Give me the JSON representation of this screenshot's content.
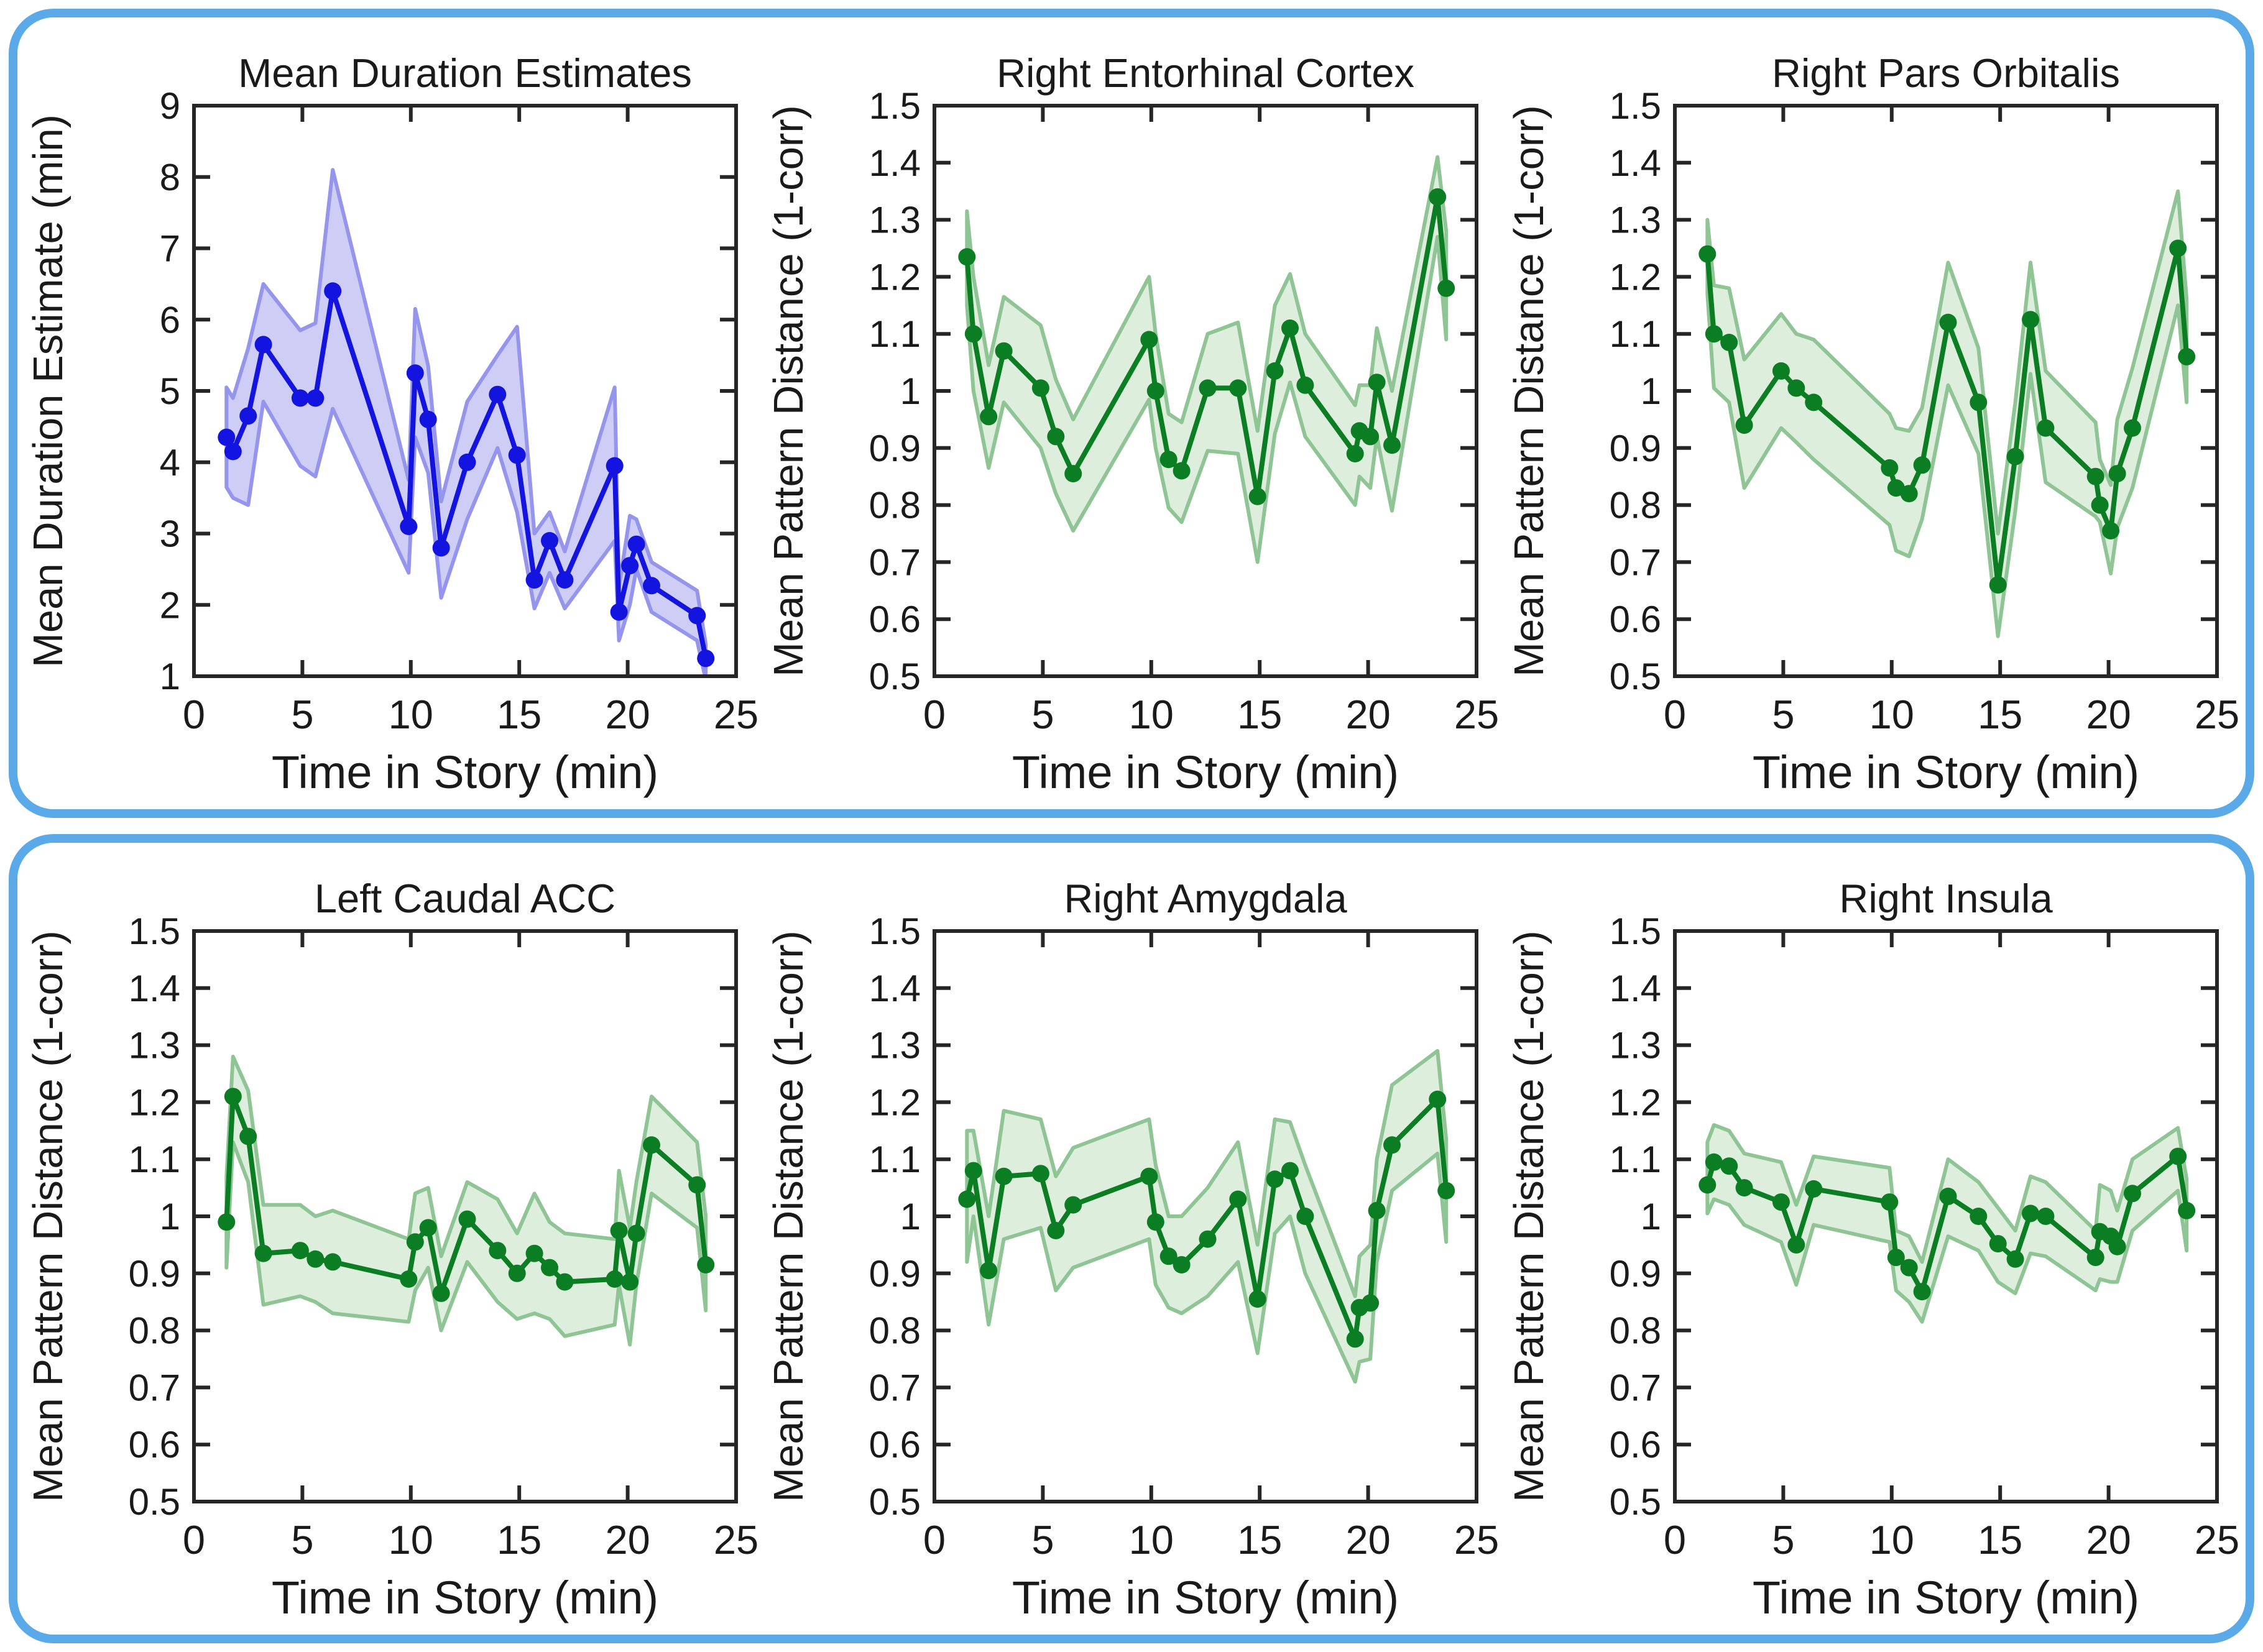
{
  "styles": {
    "panel_border_color": "#5aa9e8",
    "background": "#ffffff",
    "spine_color": "#262626",
    "text_color": "#1a1a1a",
    "blue_line": "#1414e0",
    "blue_band_fill": "#cdcdf6",
    "blue_band_edge": "#9595ee",
    "green_line": "#0b7d22",
    "green_band_fill": "#ddeedd",
    "green_band_edge": "#8fc494"
  },
  "chart_data": {
    "type": "line",
    "layout": "2 rows x 3 cols, error bands around each line",
    "xlabel": "Time in Story (min)",
    "xlim": [
      0,
      25
    ],
    "x_ticks": [
      0,
      5,
      10,
      15,
      20,
      25
    ],
    "grid": false,
    "legend": "none",
    "shared_x": [
      1.5,
      1.8,
      2.5,
      3.2,
      4.9,
      5.6,
      6.4,
      9.9,
      10.2,
      10.8,
      11.4,
      12.6,
      14.0,
      14.9,
      15.7,
      16.4,
      17.1,
      19.4,
      19.6,
      20.1,
      20.4,
      21.1,
      23.2,
      23.6
    ],
    "plots": [
      {
        "title": "Mean Duration Estimates",
        "ylabel": "Mean Duration Estimate (min)",
        "ylim": [
          1,
          9
        ],
        "y_ticks": [
          1,
          2,
          3,
          4,
          5,
          6,
          7,
          8,
          9
        ],
        "line_color": "#1414e0",
        "marker": "circle",
        "band": {
          "fill": "#cdcdf6",
          "edge": "#9595ee"
        },
        "y": [
          4.35,
          4.15,
          4.65,
          5.65,
          4.9,
          4.9,
          6.4,
          3.1,
          5.25,
          4.6,
          2.8,
          4.0,
          4.95,
          4.1,
          2.35,
          2.9,
          2.35,
          3.95,
          1.9,
          2.55,
          2.85,
          2.27,
          1.85,
          1.25
        ],
        "band_upper": [
          5.05,
          4.9,
          5.6,
          6.5,
          5.85,
          5.95,
          8.1,
          3.75,
          6.15,
          5.35,
          3.45,
          4.85,
          5.5,
          5.9,
          3.0,
          3.3,
          2.75,
          5.05,
          2.25,
          3.25,
          3.2,
          2.6,
          2.2,
          1.45
        ],
        "band_lower": [
          3.65,
          3.5,
          3.4,
          4.85,
          3.95,
          3.8,
          4.75,
          2.45,
          4.35,
          3.85,
          2.1,
          3.2,
          4.2,
          3.3,
          1.95,
          2.45,
          1.95,
          2.9,
          1.5,
          2.0,
          2.5,
          1.9,
          1.5,
          0.95
        ]
      },
      {
        "title": "Right Entorhinal Cortex",
        "ylabel": "Mean Pattern Distance (1-corr)",
        "ylim": [
          0.5,
          1.5
        ],
        "y_ticks": [
          0.5,
          0.6,
          0.7,
          0.8,
          0.9,
          1,
          1.1,
          1.2,
          1.3,
          1.4,
          1.5
        ],
        "line_color": "#0b7d22",
        "marker": "circle",
        "band": {
          "fill": "#ddeedd",
          "edge": "#8fc494"
        },
        "y": [
          1.235,
          1.1,
          0.955,
          1.07,
          1.005,
          0.92,
          0.855,
          1.09,
          1.0,
          0.88,
          0.86,
          1.005,
          1.005,
          0.815,
          1.035,
          1.11,
          1.01,
          0.89,
          0.93,
          0.92,
          1.015,
          0.905,
          1.34,
          1.18
        ],
        "band_upper": [
          1.315,
          1.2,
          1.045,
          1.165,
          1.115,
          1.02,
          0.95,
          1.2,
          1.1,
          0.96,
          0.945,
          1.1,
          1.12,
          0.93,
          1.15,
          1.205,
          1.1,
          0.975,
          1.01,
          1.01,
          1.11,
          1.0,
          1.41,
          1.28
        ],
        "band_lower": [
          1.15,
          1.0,
          0.865,
          0.98,
          0.9,
          0.82,
          0.755,
          0.985,
          0.9,
          0.795,
          0.77,
          0.895,
          0.89,
          0.7,
          0.925,
          1.015,
          0.92,
          0.8,
          0.85,
          0.83,
          0.92,
          0.79,
          1.27,
          1.09
        ]
      },
      {
        "title": "Right Pars Orbitalis",
        "ylabel": "Mean Pattern Distance (1-corr)",
        "ylim": [
          0.5,
          1.5
        ],
        "y_ticks": [
          0.5,
          0.6,
          0.7,
          0.8,
          0.9,
          1,
          1.1,
          1.2,
          1.3,
          1.4,
          1.5
        ],
        "line_color": "#0b7d22",
        "marker": "circle",
        "band": {
          "fill": "#ddeedd",
          "edge": "#8fc494"
        },
        "y": [
          1.24,
          1.1,
          1.085,
          0.94,
          1.035,
          1.005,
          0.98,
          0.865,
          0.83,
          0.82,
          0.87,
          1.12,
          0.98,
          0.66,
          0.885,
          1.125,
          0.935,
          0.85,
          0.8,
          0.755,
          0.855,
          0.935,
          1.25,
          1.06
        ],
        "band_upper": [
          1.3,
          1.185,
          1.18,
          1.055,
          1.135,
          1.1,
          1.09,
          0.96,
          0.935,
          0.93,
          0.97,
          1.225,
          1.075,
          0.75,
          0.98,
          1.225,
          1.035,
          0.945,
          0.88,
          0.835,
          0.95,
          1.04,
          1.35,
          1.16
        ],
        "band_lower": [
          1.17,
          1.005,
          0.98,
          0.83,
          0.935,
          0.91,
          0.88,
          0.765,
          0.72,
          0.71,
          0.775,
          1.01,
          0.89,
          0.57,
          0.79,
          1.03,
          0.84,
          0.78,
          0.77,
          0.68,
          0.76,
          0.83,
          1.15,
          0.98
        ]
      },
      {
        "title": "Left Caudal ACC",
        "ylabel": "Mean Pattern Distance (1-corr)",
        "ylim": [
          0.5,
          1.5
        ],
        "y_ticks": [
          0.5,
          0.6,
          0.7,
          0.8,
          0.9,
          1,
          1.1,
          1.2,
          1.3,
          1.4,
          1.5
        ],
        "line_color": "#0b7d22",
        "marker": "circle",
        "band": {
          "fill": "#ddeedd",
          "edge": "#8fc494"
        },
        "y": [
          0.99,
          1.21,
          1.14,
          0.935,
          0.94,
          0.925,
          0.92,
          0.89,
          0.955,
          0.98,
          0.865,
          0.995,
          0.94,
          0.9,
          0.935,
          0.91,
          0.885,
          0.89,
          0.975,
          0.885,
          0.97,
          1.125,
          1.055,
          0.915
        ],
        "band_upper": [
          1.07,
          1.28,
          1.22,
          1.02,
          1.02,
          1.0,
          1.01,
          0.96,
          1.04,
          1.05,
          0.93,
          1.06,
          1.03,
          0.97,
          1.04,
          0.99,
          0.97,
          0.96,
          1.08,
          0.98,
          1.06,
          1.21,
          1.13,
          1.0
        ],
        "band_lower": [
          0.91,
          1.13,
          1.06,
          0.845,
          0.86,
          0.85,
          0.83,
          0.815,
          0.87,
          0.91,
          0.8,
          0.92,
          0.85,
          0.82,
          0.83,
          0.82,
          0.79,
          0.81,
          0.88,
          0.775,
          0.88,
          1.04,
          0.98,
          0.835
        ]
      },
      {
        "title": "Right Amygdala",
        "ylabel": "Mean Pattern Distance (1-corr)",
        "ylim": [
          0.5,
          1.5
        ],
        "y_ticks": [
          0.5,
          0.6,
          0.7,
          0.8,
          0.9,
          1,
          1.1,
          1.2,
          1.3,
          1.4,
          1.5
        ],
        "line_color": "#0b7d22",
        "marker": "circle",
        "band": {
          "fill": "#ddeedd",
          "edge": "#8fc494"
        },
        "y": [
          1.03,
          1.08,
          0.905,
          1.07,
          1.075,
          0.975,
          1.02,
          1.07,
          0.99,
          0.93,
          0.915,
          0.96,
          1.03,
          0.855,
          1.065,
          1.08,
          1.0,
          0.785,
          0.84,
          0.848,
          1.01,
          1.125,
          1.205,
          1.045
        ],
        "band_upper": [
          1.15,
          1.15,
          1.0,
          1.185,
          1.17,
          1.07,
          1.12,
          1.17,
          1.09,
          1.0,
          1.0,
          1.05,
          1.13,
          0.95,
          1.17,
          1.165,
          1.09,
          0.86,
          0.93,
          0.95,
          1.1,
          1.23,
          1.29,
          1.135
        ],
        "band_lower": [
          0.92,
          1.0,
          0.81,
          0.96,
          0.98,
          0.87,
          0.91,
          0.96,
          0.88,
          0.84,
          0.83,
          0.86,
          0.92,
          0.76,
          0.97,
          1.0,
          0.9,
          0.71,
          0.745,
          0.75,
          0.92,
          1.045,
          1.11,
          0.955
        ]
      },
      {
        "title": "Right Insula",
        "ylabel": "Mean Pattern Distance (1-corr)",
        "ylim": [
          0.5,
          1.5
        ],
        "y_ticks": [
          0.5,
          0.6,
          0.7,
          0.8,
          0.9,
          1,
          1.1,
          1.2,
          1.3,
          1.4,
          1.5
        ],
        "line_color": "#0b7d22",
        "marker": "circle",
        "band": {
          "fill": "#ddeedd",
          "edge": "#8fc494"
        },
        "y": [
          1.055,
          1.095,
          1.088,
          1.05,
          1.025,
          0.95,
          1.048,
          1.025,
          0.928,
          0.91,
          0.868,
          1.035,
          1.0,
          0.952,
          0.925,
          1.005,
          1.0,
          0.928,
          0.973,
          0.965,
          0.947,
          1.04,
          1.105,
          1.01
        ],
        "band_upper": [
          1.13,
          1.16,
          1.15,
          1.11,
          1.095,
          1.02,
          1.105,
          1.085,
          0.975,
          0.965,
          0.92,
          1.1,
          1.06,
          1.015,
          0.975,
          1.07,
          1.06,
          0.975,
          1.055,
          1.045,
          1.01,
          1.1,
          1.155,
          1.065
        ],
        "band_lower": [
          1.005,
          1.03,
          1.02,
          0.985,
          0.955,
          0.88,
          0.985,
          0.955,
          0.87,
          0.85,
          0.815,
          0.965,
          0.94,
          0.885,
          0.865,
          0.935,
          0.93,
          0.87,
          0.89,
          0.885,
          0.885,
          0.975,
          1.045,
          0.94
        ]
      }
    ]
  }
}
